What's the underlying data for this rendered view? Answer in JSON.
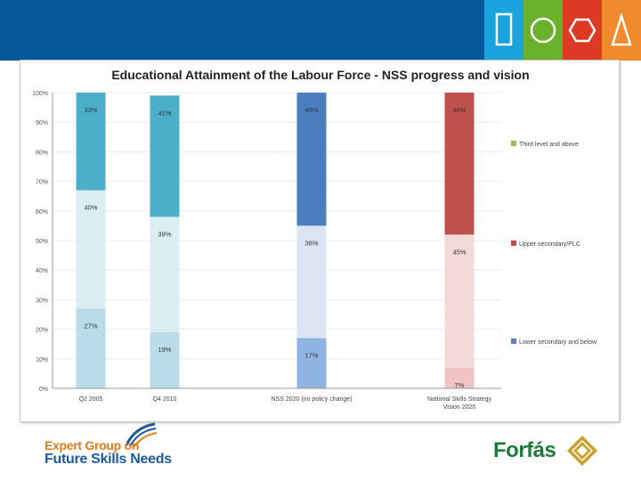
{
  "header": {
    "tile_colors": [
      "#1aa3dc",
      "#6ab22c",
      "#dd3a25",
      "#f08a2c"
    ],
    "tile_icons": [
      "rectangle-outline-icon",
      "circle-outline-icon",
      "hexagon-outline-icon",
      "triangle-outline-icon"
    ]
  },
  "chart_data": {
    "type": "bar",
    "stacked": true,
    "title": "Educational Attainment of the Labour Force - NSS progress and vision",
    "categories": [
      "Q2 2005",
      "Q4 2010",
      "NSS 2020 (no policy change)",
      "National Skills Strategy Vision 2020"
    ],
    "ylim": [
      0,
      100
    ],
    "yticks": [
      "0%",
      "10%",
      "20%",
      "30%",
      "40%",
      "50%",
      "60%",
      "70%",
      "80%",
      "90%",
      "100%"
    ],
    "series": [
      {
        "name": "Lower secondary and below",
        "values": [
          27,
          19,
          17,
          7
        ],
        "labels": [
          "27%",
          "19%",
          "17%",
          "7%"
        ],
        "colors": [
          "#b8dde8",
          "#b8dde8",
          "#8fb3e2",
          "#f0c4c4"
        ]
      },
      {
        "name": "Upper secondary/PLC",
        "values": [
          40,
          39,
          38,
          45
        ],
        "labels": [
          "40%",
          "39%",
          "38%",
          "45%"
        ],
        "colors": [
          "#daeef4",
          "#daeef4",
          "#dbe4f2",
          "#f2dada"
        ]
      },
      {
        "name": "Third level and above",
        "values": [
          33,
          41,
          45,
          48
        ],
        "labels": [
          "33%",
          "41%",
          "45%",
          "48%"
        ],
        "colors": [
          "#4bafc9",
          "#4bafc9",
          "#4a7ebf",
          "#c0504d"
        ]
      }
    ],
    "legend": [
      {
        "label": "Third level and above",
        "color": "#9bbb59"
      },
      {
        "label": "Upper secondary/PLC",
        "color": "#c0504d"
      },
      {
        "label": "Lower secondary and below",
        "color": "#4f81bd"
      }
    ],
    "legend_position": "right"
  },
  "footer": {
    "left_line1": "Expert Group on",
    "left_line2": "Future Skills Needs",
    "right_text": "Forfás"
  }
}
